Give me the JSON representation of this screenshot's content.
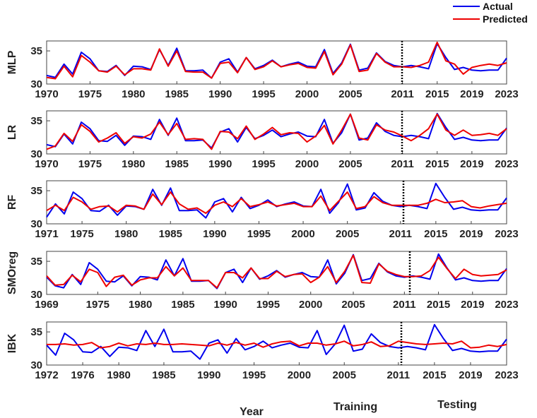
{
  "legend": {
    "actual_label": "Actual",
    "predicted_label": "Predicted",
    "actual_color": "#0000ee",
    "predicted_color": "#ee0000"
  },
  "labels": {
    "x_axis": "Year",
    "training": "Training",
    "testing": "Testing"
  },
  "chart_data": [
    {
      "type": "line",
      "name": "MLP",
      "ylabel": "MLP",
      "xlim": [
        1970,
        2023
      ],
      "ylim": [
        30,
        36.5
      ],
      "yticks": [
        30,
        35
      ],
      "xticks": [
        1970,
        1975,
        1980,
        1985,
        1990,
        1995,
        2000,
        2005,
        2011,
        2015,
        2019,
        2023
      ],
      "split_year": 2011,
      "grid": false,
      "x": [
        1970,
        1971,
        1972,
        1973,
        1974,
        1975,
        1976,
        1977,
        1978,
        1979,
        1980,
        1981,
        1982,
        1983,
        1984,
        1985,
        1986,
        1987,
        1988,
        1989,
        1990,
        1991,
        1992,
        1993,
        1994,
        1995,
        1996,
        1997,
        1998,
        1999,
        2000,
        2001,
        2002,
        2003,
        2004,
        2005,
        2006,
        2007,
        2008,
        2009,
        2010,
        2011,
        2012,
        2013,
        2014,
        2015,
        2016,
        2017,
        2018,
        2019,
        2020,
        2021,
        2022,
        2023
      ],
      "series": [
        {
          "name": "Actual",
          "values": [
            31.3,
            31.0,
            33.0,
            31.5,
            34.8,
            33.8,
            32.0,
            31.9,
            32.8,
            31.3,
            32.7,
            32.6,
            32.2,
            35.2,
            32.8,
            35.4,
            32.0,
            32.0,
            32.1,
            30.9,
            33.3,
            33.8,
            31.8,
            34.0,
            32.3,
            32.8,
            33.6,
            32.6,
            33.0,
            33.3,
            32.7,
            32.6,
            35.2,
            31.6,
            33.2,
            36.0,
            32.1,
            32.4,
            34.7,
            33.4,
            32.8,
            32.6,
            32.8,
            32.6,
            32.3,
            36.1,
            34.0,
            32.2,
            32.5,
            32.1,
            32.0,
            32.1,
            32.1,
            33.9
          ]
        },
        {
          "name": "Predicted",
          "values": [
            31.0,
            30.8,
            32.7,
            31.1,
            34.3,
            33.3,
            32.0,
            31.8,
            32.7,
            31.4,
            32.3,
            32.3,
            32.1,
            35.3,
            32.7,
            35.0,
            31.9,
            31.8,
            31.8,
            30.9,
            33.1,
            33.3,
            31.7,
            34.0,
            32.2,
            32.6,
            33.5,
            32.6,
            32.9,
            33.1,
            32.5,
            32.4,
            34.9,
            31.4,
            33.0,
            35.9,
            31.9,
            32.1,
            34.6,
            33.3,
            32.6,
            32.6,
            32.5,
            32.8,
            33.3,
            36.3,
            33.5,
            33.0,
            31.5,
            32.5,
            32.8,
            33.0,
            32.8,
            33.2
          ]
        }
      ]
    },
    {
      "type": "line",
      "name": "LR",
      "ylabel": "LR",
      "xlim": [
        1970,
        2023
      ],
      "ylim": [
        30,
        36.5
      ],
      "yticks": [
        30,
        35
      ],
      "xticks": [
        1970,
        1975,
        1980,
        1985,
        1990,
        1995,
        2000,
        2005,
        2011,
        2015,
        2019,
        2023
      ],
      "split_year": 2011,
      "grid": false,
      "x": [
        1970,
        1971,
        1972,
        1973,
        1974,
        1975,
        1976,
        1977,
        1978,
        1979,
        1980,
        1981,
        1982,
        1983,
        1984,
        1985,
        1986,
        1987,
        1988,
        1989,
        1990,
        1991,
        1992,
        1993,
        1994,
        1995,
        1996,
        1997,
        1998,
        1999,
        2000,
        2001,
        2002,
        2003,
        2004,
        2005,
        2006,
        2007,
        2008,
        2009,
        2010,
        2011,
        2012,
        2013,
        2014,
        2015,
        2016,
        2017,
        2018,
        2019,
        2020,
        2021,
        2022,
        2023
      ],
      "series": [
        {
          "name": "Actual",
          "values": [
            31.4,
            31.1,
            33.0,
            31.5,
            34.8,
            33.8,
            32.0,
            31.9,
            32.8,
            31.3,
            32.7,
            32.6,
            32.2,
            35.2,
            32.8,
            35.4,
            32.0,
            32.0,
            32.1,
            30.9,
            33.3,
            33.8,
            31.8,
            34.0,
            32.3,
            32.8,
            33.6,
            32.6,
            33.0,
            33.3,
            32.7,
            32.6,
            35.2,
            31.6,
            33.2,
            36.0,
            32.1,
            32.4,
            34.7,
            33.4,
            32.8,
            32.6,
            32.8,
            32.6,
            32.3,
            36.1,
            34.0,
            32.2,
            32.5,
            32.1,
            32.0,
            32.1,
            32.1,
            33.9
          ]
        },
        {
          "name": "Predicted",
          "values": [
            30.7,
            31.2,
            33.1,
            31.9,
            34.4,
            33.4,
            31.8,
            32.4,
            33.2,
            31.6,
            32.6,
            32.4,
            33.0,
            34.8,
            32.9,
            34.6,
            32.2,
            32.3,
            32.2,
            30.7,
            33.4,
            33.3,
            32.3,
            34.2,
            32.2,
            33.0,
            34.0,
            32.9,
            33.2,
            33.1,
            31.8,
            32.7,
            34.3,
            31.5,
            33.6,
            36.0,
            32.4,
            32.1,
            34.4,
            33.6,
            33.3,
            32.7,
            32.0,
            32.8,
            33.8,
            36.0,
            33.6,
            32.8,
            33.6,
            32.8,
            32.9,
            33.1,
            32.8,
            33.8
          ]
        }
      ]
    },
    {
      "type": "line",
      "name": "RF",
      "ylabel": "RF",
      "xlim": [
        1971,
        2023
      ],
      "ylim": [
        30,
        36.5
      ],
      "yticks": [
        30,
        35
      ],
      "xticks": [
        1971,
        1975,
        1980,
        1985,
        1990,
        1995,
        2000,
        2005,
        2011,
        2015,
        2019,
        2023
      ],
      "split_year": 2011,
      "grid": false,
      "x": [
        1971,
        1972,
        1973,
        1974,
        1975,
        1976,
        1977,
        1978,
        1979,
        1980,
        1981,
        1982,
        1983,
        1984,
        1985,
        1986,
        1987,
        1988,
        1989,
        1990,
        1991,
        1992,
        1993,
        1994,
        1995,
        1996,
        1997,
        1998,
        1999,
        2000,
        2001,
        2002,
        2003,
        2004,
        2005,
        2006,
        2007,
        2008,
        2009,
        2010,
        2011,
        2012,
        2013,
        2014,
        2015,
        2016,
        2017,
        2018,
        2019,
        2020,
        2021,
        2022,
        2023
      ],
      "series": [
        {
          "name": "Actual",
          "values": [
            31.0,
            33.0,
            31.5,
            34.8,
            33.8,
            32.0,
            31.9,
            32.8,
            31.3,
            32.7,
            32.6,
            32.2,
            35.2,
            32.8,
            35.4,
            32.0,
            32.0,
            32.1,
            30.9,
            33.3,
            33.8,
            31.8,
            34.0,
            32.3,
            32.8,
            33.6,
            32.6,
            33.0,
            33.3,
            32.7,
            32.6,
            35.2,
            31.6,
            33.2,
            36.0,
            32.1,
            32.4,
            34.7,
            33.4,
            32.8,
            32.6,
            32.8,
            32.6,
            32.3,
            36.1,
            34.0,
            32.2,
            32.5,
            32.1,
            32.0,
            32.1,
            32.1,
            33.9
          ]
        },
        {
          "name": "Predicted",
          "values": [
            32.0,
            32.8,
            32.0,
            34.0,
            33.3,
            32.2,
            32.6,
            32.7,
            31.8,
            32.8,
            32.7,
            32.2,
            34.5,
            32.9,
            34.8,
            33.0,
            32.2,
            32.4,
            31.6,
            32.8,
            33.3,
            32.6,
            33.8,
            32.6,
            32.9,
            33.3,
            32.7,
            32.9,
            33.1,
            32.6,
            32.6,
            34.2,
            32.0,
            33.4,
            34.8,
            32.3,
            32.6,
            34.1,
            33.2,
            32.8,
            32.8,
            32.8,
            32.8,
            33.1,
            33.7,
            33.2,
            33.3,
            33.5,
            32.6,
            32.4,
            32.7,
            32.9,
            33.1
          ]
        }
      ]
    },
    {
      "type": "line",
      "name": "SMOreg",
      "ylabel": "SMOreg",
      "xlim": [
        1969,
        2023
      ],
      "ylim": [
        30,
        36.5
      ],
      "yticks": [
        30,
        35
      ],
      "xticks": [
        1969,
        1975,
        1980,
        1985,
        1990,
        1995,
        2000,
        2005,
        2011,
        2015,
        2019,
        2023
      ],
      "split_year": 2011,
      "grid": false,
      "x": [
        1969,
        1970,
        1971,
        1972,
        1973,
        1974,
        1975,
        1976,
        1977,
        1978,
        1979,
        1980,
        1981,
        1982,
        1983,
        1984,
        1985,
        1986,
        1987,
        1988,
        1989,
        1990,
        1991,
        1992,
        1993,
        1994,
        1995,
        1996,
        1997,
        1998,
        1999,
        2000,
        2001,
        2002,
        2003,
        2004,
        2005,
        2006,
        2007,
        2008,
        2009,
        2010,
        2011,
        2012,
        2013,
        2014,
        2015,
        2016,
        2017,
        2018,
        2019,
        2020,
        2021,
        2022,
        2023
      ],
      "series": [
        {
          "name": "Actual",
          "values": [
            32.6,
            31.3,
            31.0,
            33.0,
            31.5,
            34.8,
            33.8,
            32.0,
            31.9,
            32.8,
            31.3,
            32.7,
            32.6,
            32.2,
            35.2,
            32.8,
            35.4,
            32.0,
            32.0,
            32.1,
            30.9,
            33.3,
            33.8,
            31.8,
            34.0,
            32.3,
            32.8,
            33.6,
            32.6,
            33.0,
            33.3,
            32.7,
            32.6,
            35.2,
            31.6,
            33.2,
            36.0,
            32.1,
            32.4,
            34.7,
            33.4,
            32.8,
            32.6,
            32.8,
            32.6,
            32.3,
            36.1,
            34.0,
            32.2,
            32.5,
            32.1,
            32.0,
            32.1,
            32.1,
            33.9
          ]
        },
        {
          "name": "Predicted",
          "values": [
            32.8,
            31.4,
            31.5,
            32.9,
            31.9,
            33.8,
            33.3,
            31.2,
            32.6,
            32.9,
            31.4,
            32.2,
            32.5,
            32.5,
            34.2,
            32.8,
            34.0,
            32.1,
            32.1,
            32.1,
            31.0,
            33.3,
            33.3,
            32.5,
            34.0,
            32.4,
            32.4,
            33.5,
            32.7,
            33.0,
            33.1,
            31.8,
            32.6,
            34.2,
            31.8,
            33.5,
            35.9,
            31.8,
            31.7,
            34.6,
            33.5,
            33.0,
            32.7,
            32.7,
            32.8,
            33.6,
            35.6,
            33.9,
            32.4,
            33.8,
            33.0,
            32.8,
            32.9,
            33.0,
            33.7
          ]
        }
      ]
    },
    {
      "type": "line",
      "name": "IBK",
      "ylabel": "IBK",
      "xlim": [
        1972,
        2023
      ],
      "ylim": [
        30,
        36.5
      ],
      "yticks": [
        30,
        35
      ],
      "xticks": [
        1972,
        1976,
        1980,
        1985,
        1990,
        1995,
        2000,
        2005,
        2011,
        2015,
        2019,
        2023
      ],
      "split_year": 2011,
      "grid": false,
      "x": [
        1972,
        1973,
        1974,
        1975,
        1976,
        1977,
        1978,
        1979,
        1980,
        1981,
        1982,
        1983,
        1984,
        1985,
        1986,
        1987,
        1988,
        1989,
        1990,
        1991,
        1992,
        1993,
        1994,
        1995,
        1996,
        1997,
        1998,
        1999,
        2000,
        2001,
        2002,
        2003,
        2004,
        2005,
        2006,
        2007,
        2008,
        2009,
        2010,
        2011,
        2012,
        2013,
        2014,
        2015,
        2016,
        2017,
        2018,
        2019,
        2020,
        2021,
        2022,
        2023
      ],
      "series": [
        {
          "name": "Actual",
          "values": [
            33.0,
            31.5,
            34.8,
            33.8,
            32.0,
            31.9,
            32.8,
            31.3,
            32.7,
            32.6,
            32.2,
            35.2,
            32.8,
            35.4,
            32.0,
            32.0,
            32.1,
            30.9,
            33.3,
            33.8,
            31.8,
            34.0,
            32.3,
            32.8,
            33.6,
            32.6,
            33.0,
            33.3,
            32.7,
            32.6,
            35.2,
            31.6,
            33.2,
            36.0,
            32.1,
            32.4,
            34.7,
            33.4,
            32.8,
            32.6,
            32.8,
            32.6,
            32.3,
            36.1,
            34.0,
            32.2,
            32.5,
            32.1,
            32.0,
            32.1,
            32.1,
            33.9
          ]
        },
        {
          "name": "Predicted",
          "values": [
            33.1,
            33.1,
            33.2,
            33.0,
            33.1,
            33.4,
            32.6,
            32.8,
            33.3,
            32.9,
            33.2,
            33.1,
            33.3,
            33.1,
            33.1,
            33.2,
            33.1,
            33.0,
            32.9,
            33.3,
            33.0,
            33.4,
            33.0,
            33.3,
            32.7,
            33.2,
            33.5,
            33.6,
            32.9,
            33.3,
            33.3,
            33.0,
            33.2,
            33.6,
            32.9,
            33.1,
            33.5,
            32.8,
            32.9,
            33.6,
            33.4,
            33.2,
            33.1,
            33.2,
            33.3,
            33.2,
            33.6,
            32.6,
            32.7,
            33.0,
            32.8,
            33.1
          ]
        }
      ]
    }
  ]
}
